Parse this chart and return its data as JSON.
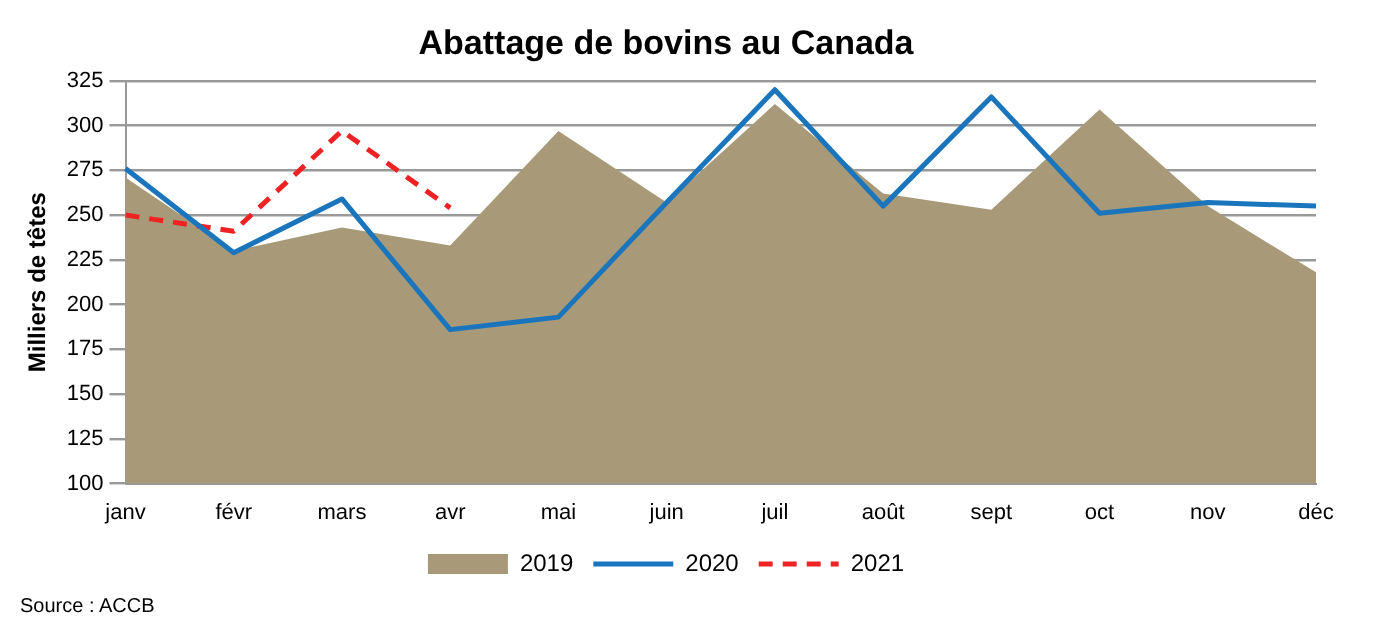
{
  "chart_data": {
    "type": "line",
    "title": "Abattage de bovins au Canada",
    "ylabel": "Milliers de têtes",
    "categories": [
      "janv",
      "févr",
      "mars",
      "avr",
      "mai",
      "juin",
      "juil",
      "août",
      "sept",
      "oct",
      "nov",
      "déc"
    ],
    "series": [
      {
        "name": "2019",
        "type": "area",
        "color": "#a89a78",
        "values": [
          271,
          230,
          243,
          233,
          297,
          257,
          312,
          262,
          253,
          309,
          255,
          218
        ]
      },
      {
        "name": "2020",
        "type": "line",
        "color": "#1a75bc",
        "values": [
          276,
          229,
          259,
          186,
          193,
          257,
          320,
          255,
          316,
          251,
          257,
          255
        ]
      },
      {
        "name": "2021",
        "type": "line",
        "color": "#ee2222",
        "line_style": "dashed",
        "values": [
          250,
          241,
          297,
          254,
          null,
          null,
          null,
          null,
          null,
          null,
          null,
          null
        ]
      }
    ],
    "ylim": [
      100,
      325
    ],
    "yticks": [
      100,
      125,
      150,
      175,
      200,
      225,
      250,
      275,
      300,
      325
    ],
    "grid": "y",
    "legend": "bottom",
    "annotations": [
      "Source : ACCB"
    ]
  }
}
